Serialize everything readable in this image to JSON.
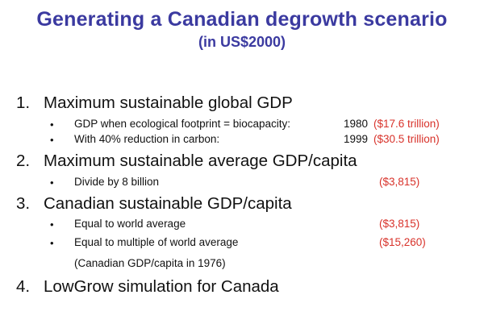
{
  "title": "Generating a Canadian degrowth scenario",
  "subtitle": "(in US$2000)",
  "items": [
    {
      "number": "1.",
      "label": "Maximum sustainable global GDP",
      "subitems": [
        {
          "text": "GDP when ecological footprint = biocapacity:",
          "year": "1980",
          "value": "($17.6 trillion)"
        },
        {
          "text": "With 40% reduction in carbon:",
          "year": "1999",
          "value": "($30.5 trillion)"
        }
      ]
    },
    {
      "number": "2.",
      "label": "Maximum sustainable average GDP/capita",
      "subitems": [
        {
          "text": "Divide by 8 billion",
          "value": "($3,815)"
        }
      ]
    },
    {
      "number": "3.",
      "label": "Canadian sustainable GDP/capita",
      "subitems": [
        {
          "text": "Equal to world average",
          "value": "($3,815)"
        },
        {
          "text": "Equal to multiple of world average",
          "value": "($15,260)"
        }
      ],
      "note": "(Canadian GDP/capita in 1976)"
    },
    {
      "number": "4.",
      "label": "LowGrow simulation for Canada",
      "subitems": []
    }
  ],
  "bullet_glyph": "•",
  "colors": {
    "title": "#3b3aa0",
    "highlight": "#d8322a",
    "text": "#111111"
  }
}
